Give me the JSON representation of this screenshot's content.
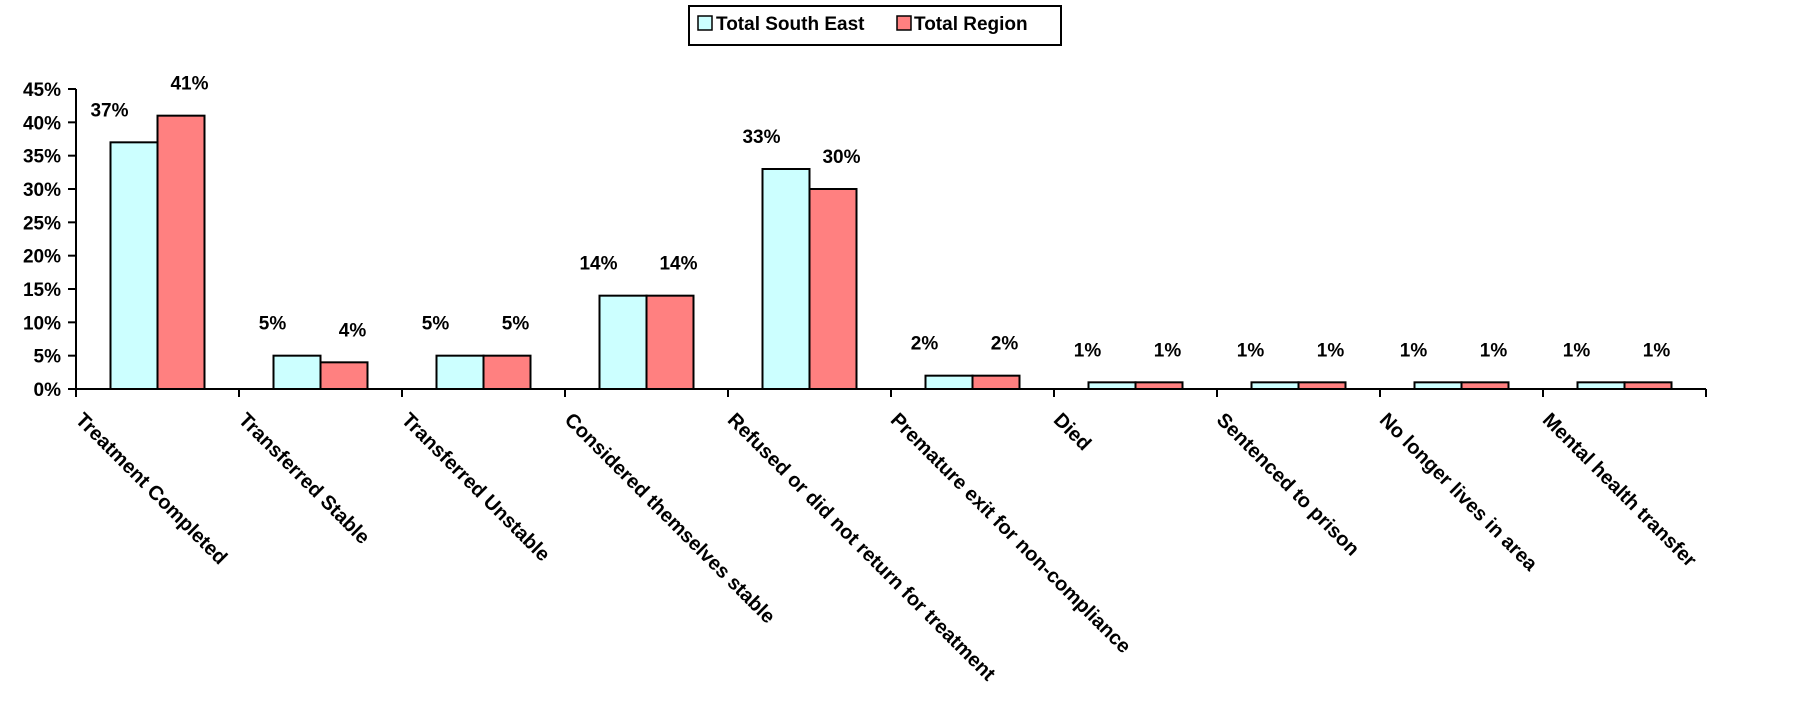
{
  "chart_data": {
    "type": "bar",
    "title": "",
    "xlabel": "",
    "ylabel": "",
    "ylim": [
      0,
      45
    ],
    "y_ticks": [
      0,
      5,
      10,
      15,
      20,
      25,
      30,
      35,
      40,
      45
    ],
    "y_tick_labels": [
      "0%",
      "5%",
      "10%",
      "15%",
      "20%",
      "25%",
      "30%",
      "35%",
      "40%",
      "45%"
    ],
    "grid": false,
    "legend_position": "top-center",
    "categories": [
      "Treatment Completed",
      "Transferred Stable",
      "Transferred Unstable",
      "Considered themselves stable",
      "Refused or did not return for treatment",
      "Premature exit for non-compliance",
      "Died",
      "Sentenced to prison",
      "No longer lives in area",
      "Mental health transfer"
    ],
    "series": [
      {
        "name": "Total South East",
        "color": "#CCFFFF",
        "values": [
          37,
          5,
          5,
          14,
          33,
          2,
          1,
          1,
          1,
          1
        ],
        "labels": [
          "37%",
          "5%",
          "5%",
          "14%",
          "33%",
          "2%",
          "1%",
          "1%",
          "1%",
          "1%"
        ]
      },
      {
        "name": "Total Region",
        "color": "#FF8080",
        "values": [
          41,
          4,
          5,
          14,
          30,
          2,
          1,
          1,
          1,
          1
        ],
        "labels": [
          "41%",
          "4%",
          "5%",
          "14%",
          "30%",
          "2%",
          "1%",
          "1%",
          "1%",
          "1%"
        ]
      }
    ]
  }
}
